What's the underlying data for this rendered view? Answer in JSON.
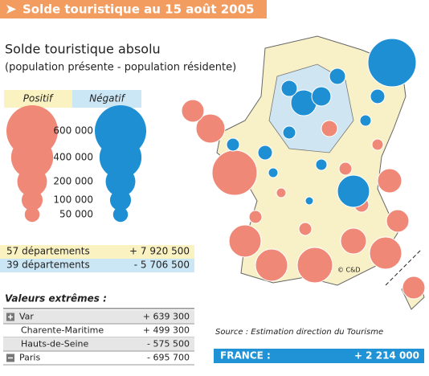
{
  "header": {
    "title": "Solde touristique au 15 août 2005"
  },
  "title": "Solde touristique absolu",
  "subtitle": "(population présente - population résidente)",
  "legend": {
    "positive": "Positif",
    "negative": "Négatif",
    "sizes": [
      {
        "value": 600000,
        "label": "600 000"
      },
      {
        "value": 400000,
        "label": "400 000"
      },
      {
        "value": 200000,
        "label": "200 000"
      },
      {
        "value": 100000,
        "label": "100 000"
      },
      {
        "value": 50000,
        "label": "50 000"
      }
    ],
    "positive_color": "#f08878",
    "negative_color": "#1f8fd4"
  },
  "summary": [
    {
      "label": "57 départements",
      "value": "+ 7 920 500"
    },
    {
      "label": "39 départements",
      "value": "- 5 706 500"
    }
  ],
  "extremes": {
    "title": "Valeurs extrêmes :",
    "rows": [
      {
        "name": "Var",
        "value": "+ 639 300"
      },
      {
        "name": "Charente-Maritime",
        "value": "+ 499 300"
      },
      {
        "name": "Hauts-de-Seine",
        "value": "- 575 500"
      },
      {
        "name": "Paris",
        "value": "- 695 700"
      }
    ]
  },
  "source": "Source : Estimation direction du Tourisme",
  "total": {
    "label": "FRANCE :",
    "value": "+ 2 214 000"
  },
  "copyright": "© C&D"
}
